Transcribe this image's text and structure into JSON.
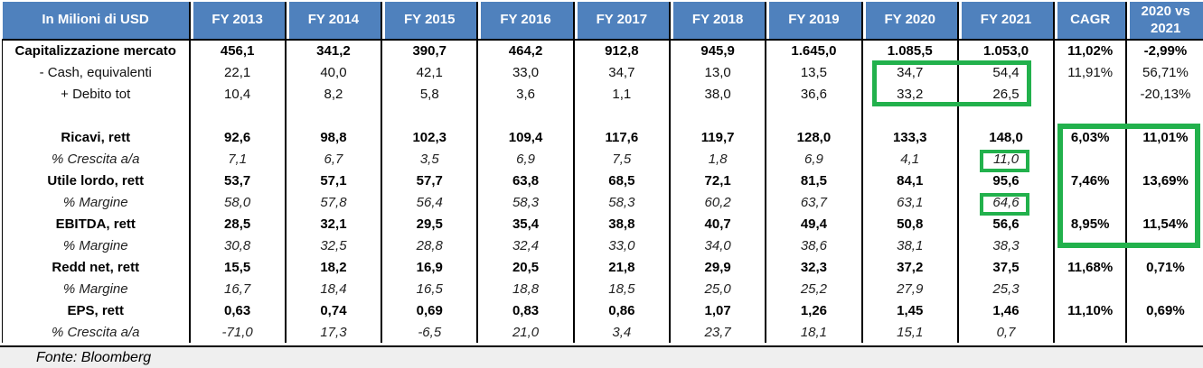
{
  "chart_data": {
    "type": "table",
    "title": "In Milioni di USD",
    "source": "Fonte: Bloomberg",
    "columns": [
      "In Milioni di USD",
      "FY 2013",
      "FY 2014",
      "FY 2015",
      "FY 2016",
      "FY 2017",
      "FY 2018",
      "FY 2019",
      "FY 2020",
      "FY 2021",
      "CAGR",
      "2020 vs 2021"
    ],
    "rows": [
      {
        "label": "Capitalizzazione mercato",
        "style": "bold",
        "values": [
          "456,1",
          "341,2",
          "390,7",
          "464,2",
          "912,8",
          "945,9",
          "1.645,0",
          "1.085,5",
          "1.053,0"
        ],
        "cagr": "11,02%",
        "delta": "-2,99%"
      },
      {
        "label": "- Cash, equivalenti",
        "style": "normal",
        "values": [
          "22,1",
          "40,0",
          "42,1",
          "33,0",
          "34,7",
          "13,0",
          "13,5",
          "34,7",
          "54,4"
        ],
        "cagr": "11,91%",
        "delta": "56,71%"
      },
      {
        "label": "+ Debito tot",
        "style": "normal",
        "values": [
          "10,4",
          "8,2",
          "5,8",
          "3,6",
          "1,1",
          "38,0",
          "36,6",
          "33,2",
          "26,5"
        ],
        "cagr": "",
        "delta": "-20,13%"
      },
      {
        "label": "",
        "style": "spacer",
        "values": [
          "",
          "",
          "",
          "",
          "",
          "",
          "",
          "",
          ""
        ],
        "cagr": "",
        "delta": ""
      },
      {
        "label": "Ricavi, rett",
        "style": "bold",
        "values": [
          "92,6",
          "98,8",
          "102,3",
          "109,4",
          "117,6",
          "119,7",
          "128,0",
          "133,3",
          "148,0"
        ],
        "cagr": "6,03%",
        "delta": "11,01%"
      },
      {
        "label": "% Crescita a/a",
        "style": "pct",
        "values": [
          "7,1",
          "6,7",
          "3,5",
          "6,9",
          "7,5",
          "1,8",
          "6,9",
          "4,1",
          "11,0"
        ],
        "cagr": "",
        "delta": ""
      },
      {
        "label": "Utile lordo, rett",
        "style": "bold",
        "values": [
          "53,7",
          "57,1",
          "57,7",
          "63,8",
          "68,5",
          "72,1",
          "81,5",
          "84,1",
          "95,6"
        ],
        "cagr": "7,46%",
        "delta": "13,69%"
      },
      {
        "label": "% Margine",
        "style": "pct",
        "values": [
          "58,0",
          "57,8",
          "56,4",
          "58,3",
          "58,3",
          "60,2",
          "63,7",
          "63,1",
          "64,6"
        ],
        "cagr": "",
        "delta": ""
      },
      {
        "label": "EBITDA, rett",
        "style": "bold",
        "values": [
          "28,5",
          "32,1",
          "29,5",
          "35,4",
          "38,8",
          "40,7",
          "49,4",
          "50,8",
          "56,6"
        ],
        "cagr": "8,95%",
        "delta": "11,54%"
      },
      {
        "label": "% Margine",
        "style": "pct",
        "values": [
          "30,8",
          "32,5",
          "28,8",
          "32,4",
          "33,0",
          "34,0",
          "38,6",
          "38,1",
          "38,3"
        ],
        "cagr": "",
        "delta": ""
      },
      {
        "label": "Redd net, rett",
        "style": "bold",
        "values": [
          "15,5",
          "18,2",
          "16,9",
          "20,5",
          "21,8",
          "29,9",
          "32,3",
          "37,2",
          "37,5"
        ],
        "cagr": "11,68%",
        "delta": "0,71%"
      },
      {
        "label": "% Margine",
        "style": "pct",
        "values": [
          "16,7",
          "18,4",
          "16,5",
          "18,8",
          "18,5",
          "25,0",
          "25,2",
          "27,9",
          "25,3"
        ],
        "cagr": "",
        "delta": ""
      },
      {
        "label": "EPS, rett",
        "style": "bold",
        "values": [
          "0,63",
          "0,74",
          "0,69",
          "0,83",
          "0,86",
          "1,07",
          "1,26",
          "1,45",
          "1,46"
        ],
        "cagr": "11,10%",
        "delta": "0,69%"
      },
      {
        "label": "% Crescita a/a",
        "style": "pct",
        "values": [
          "-71,0",
          "17,3",
          "-6,5",
          "21,0",
          "3,4",
          "23,7",
          "18,1",
          "15,1",
          "0,7"
        ],
        "cagr": "",
        "delta": ""
      }
    ]
  },
  "colors": {
    "header_bg": "#4F81BD",
    "header_text": "#FFFFFF",
    "highlight_green": "#22B14C",
    "footer_bg": "#EFEFEF",
    "grid": "#000000"
  },
  "highlights": [
    {
      "name": "cash-debt-2020-2021",
      "around": "FY 2020 and FY 2021 values of '- Cash, equivalenti' and '+ Debito tot'"
    },
    {
      "name": "revenue-growth-2021",
      "around": "FY 2021 '% Crescita a/a' value 11,0"
    },
    {
      "name": "gross-margin-2021",
      "around": "FY 2021 '% Margine' value 64,6"
    },
    {
      "name": "cagr-delta-block",
      "around": "CAGR and 2020 vs 2021 columns from 'Ricavi, rett' to EBITDA '% Margine'"
    }
  ]
}
